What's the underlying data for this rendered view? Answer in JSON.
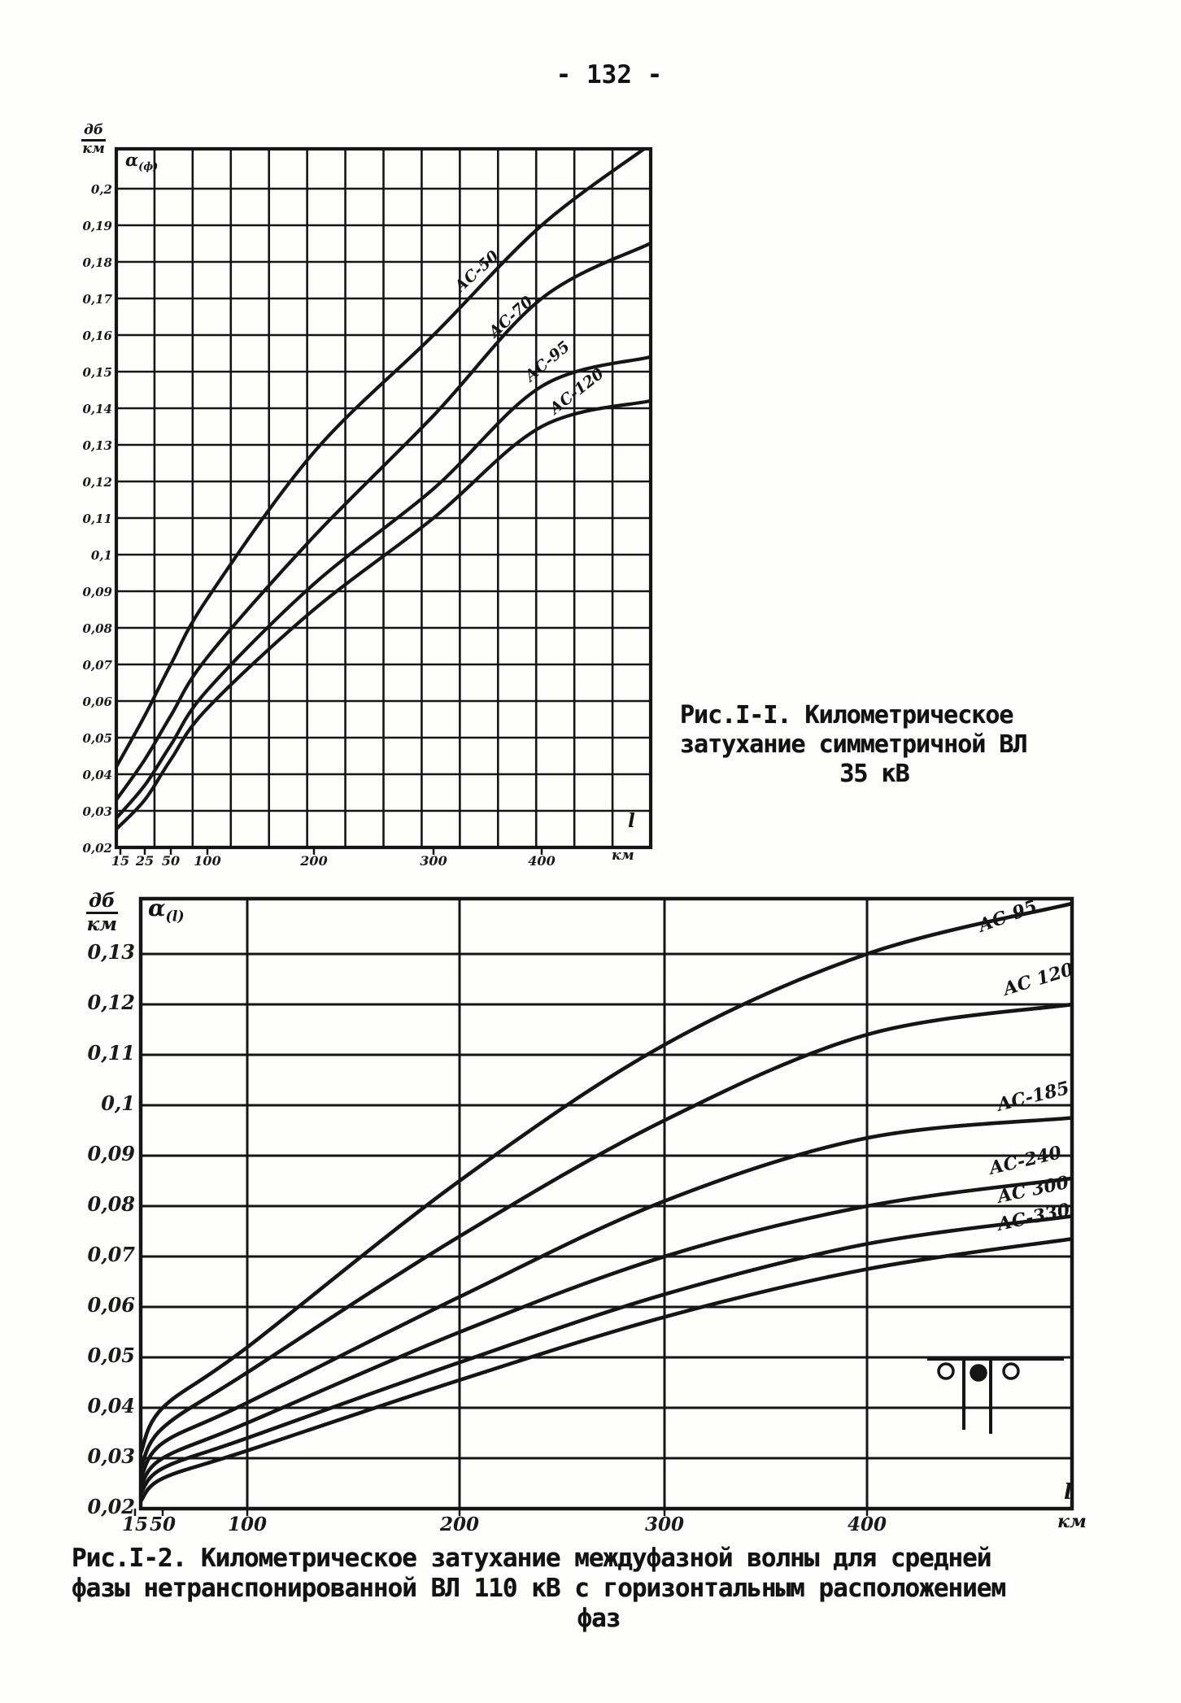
{
  "page": {
    "number": "- 132 -",
    "background": "#fefefd",
    "ink": "#151515"
  },
  "figure1": {
    "y_axis_unit": {
      "top": "дб",
      "bottom": "км"
    },
    "alpha": "α",
    "alpha_sub": "(ф)",
    "x_var": "l",
    "x_unit": "км",
    "caption": {
      "line1": "Рис.I-I. Километрическое",
      "line2": "затухание симметричной ВЛ",
      "line3": "35 кВ"
    }
  },
  "figure2": {
    "y_axis_unit": {
      "top": "дб",
      "bottom": "км"
    },
    "alpha": "α",
    "alpha_sub": "(l)",
    "x_var": "l",
    "x_unit": "км",
    "inset_icon": "phase-arrangement-icon",
    "caption": {
      "line1": "Рис.I-2. Километрическое затухание междуфазной волны для средней",
      "line2": "фазы нетранспонированной ВЛ 110 кВ с горизонтальным расположением",
      "line3": "фаз"
    }
  },
  "chart_data": [
    {
      "type": "line",
      "title": "Рис.I-I. Километрическое затухание симметричной ВЛ 35 кВ",
      "xlabel": "l, км",
      "ylabel": "α(ф), дб/км",
      "xscale": "нелинейная (сжатая) шкала длины линии",
      "grid": true,
      "legend": "подписи на кривых",
      "ylim": [
        0.02,
        0.2
      ],
      "x": [
        15,
        25,
        50,
        100,
        200,
        300,
        400,
        500
      ],
      "x_tick_labels": [
        "15",
        "25",
        "50",
        "100",
        "200",
        "300",
        "400"
      ],
      "y_tick_labels": [
        "0,2",
        "0,19",
        "0,18",
        "0,17",
        "0,16",
        "0,15",
        "0,14",
        "0,13",
        "0,12",
        "0,11",
        "0,1",
        "0,09",
        "0,08",
        "0,07",
        "0,06",
        "0,05",
        "0,04",
        "0,03",
        "0,02"
      ],
      "series": [
        {
          "name": "АС-50",
          "values": [
            0.042,
            0.056,
            0.07,
            0.088,
            0.128,
            0.16,
            0.19,
            0.212
          ]
        },
        {
          "name": "АС-70",
          "values": [
            0.033,
            0.044,
            0.056,
            0.072,
            0.105,
            0.138,
            0.17,
            0.185
          ]
        },
        {
          "name": "АС-95",
          "values": [
            0.028,
            0.037,
            0.048,
            0.063,
            0.092,
            0.118,
            0.146,
            0.154
          ]
        },
        {
          "name": "АС-120",
          "values": [
            0.025,
            0.033,
            0.044,
            0.058,
            0.085,
            0.11,
            0.135,
            0.142
          ]
        }
      ]
    },
    {
      "type": "line",
      "title": "Рис.I-2. Километрическое затухание междуфазной волны для средней фазы нетранспонированной ВЛ 110 кВ с горизонтальным расположением фаз",
      "xlabel": "l, км",
      "ylabel": "α(l), дб/км",
      "xscale": "нелинейная (сжатая) шкала длины линии",
      "grid": true,
      "legend": "подписи на кривых",
      "ylim": [
        0.02,
        0.13
      ],
      "x": [
        15,
        50,
        100,
        200,
        300,
        400,
        500
      ],
      "x_tick_labels": [
        "15",
        "50",
        "100",
        "200",
        "300",
        "400"
      ],
      "y_tick_labels": [
        "0,13",
        "0,12",
        "0,11",
        "0,1",
        "0,09",
        "0,08",
        "0,07",
        "0,06",
        "0,05",
        "0,04",
        "0,03",
        "0,02"
      ],
      "series": [
        {
          "name": "АС-95",
          "values": [
            0.031,
            0.04,
            0.052,
            0.085,
            0.112,
            0.13,
            0.14
          ]
        },
        {
          "name": "АС 120",
          "values": [
            0.028,
            0.036,
            0.047,
            0.074,
            0.097,
            0.114,
            0.12
          ]
        },
        {
          "name": "АС-185",
          "values": [
            0.026,
            0.033,
            0.041,
            0.062,
            0.081,
            0.0935,
            0.0975
          ]
        },
        {
          "name": "АС-240",
          "values": [
            0.0245,
            0.03,
            0.037,
            0.055,
            0.07,
            0.08,
            0.0855
          ]
        },
        {
          "name": "АС 300",
          "values": [
            0.023,
            0.028,
            0.034,
            0.049,
            0.0625,
            0.0725,
            0.078
          ]
        },
        {
          "name": "АС-330",
          "values": [
            0.0215,
            0.026,
            0.0315,
            0.0455,
            0.058,
            0.0675,
            0.0735
          ]
        }
      ]
    }
  ]
}
